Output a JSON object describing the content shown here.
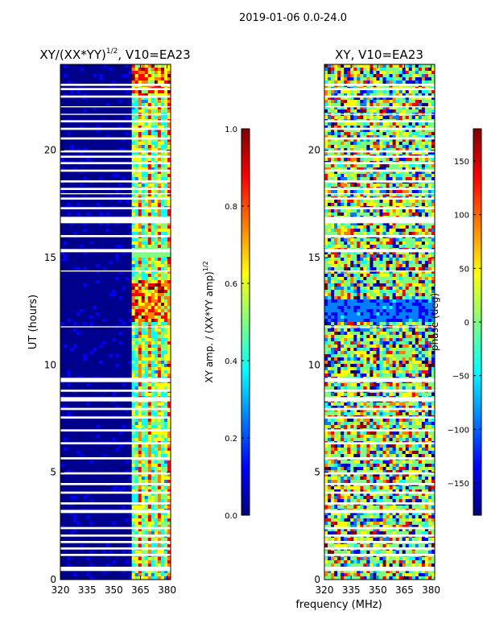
{
  "figure_title": "2019-01-06 0.0-24.0",
  "shared_xlabel": "frequency (MHz)",
  "colors": {
    "background": "#00008f",
    "gap": "#ffffff",
    "axis": "#000000",
    "jet": [
      "#00007f",
      "#0000ff",
      "#007fff",
      "#00ffff",
      "#7fff7f",
      "#ffff00",
      "#ff7f00",
      "#ff0000",
      "#7f0000"
    ]
  },
  "chart_data": [
    {
      "type": "heatmap",
      "title_main": "XY/(XX*YY)",
      "title_sup": "1/2",
      "title_suffix": ", V10=EA23",
      "xlabel": "",
      "ylabel": "UT (hours)",
      "xlim": [
        320,
        382
      ],
      "ylim": [
        0,
        24
      ],
      "xticks": [
        320,
        335,
        350,
        365,
        380
      ],
      "yticks": [
        0,
        5,
        10,
        15,
        20
      ],
      "colorbar": {
        "label_main": "XY amp. / (XX*YY amp)",
        "label_sup": "1/2",
        "range": [
          0.0,
          1.0
        ],
        "ticks": [
          "0.0",
          "0.2",
          "0.4",
          "0.6",
          "0.8",
          "1.0"
        ],
        "tick_values": [
          0.0,
          0.2,
          0.4,
          0.6,
          0.8,
          1.0
        ]
      },
      "active_band_mhz": [
        361,
        382
      ]
    },
    {
      "type": "heatmap",
      "title_main": "XY, V10=EA23",
      "xlabel": "frequency (MHz)",
      "ylabel": "",
      "xlim": [
        320,
        382
      ],
      "ylim": [
        0,
        24
      ],
      "xticks": [
        320,
        335,
        350,
        365,
        380
      ],
      "yticks": [
        0,
        5,
        10,
        15,
        20
      ],
      "colorbar": {
        "label_main": "phase (deg)",
        "range": [
          -180,
          180
        ],
        "ticks": [
          "−150",
          "−100",
          "−50",
          "0",
          "50",
          "100",
          "150"
        ],
        "tick_values": [
          -150,
          -100,
          -50,
          0,
          50,
          100,
          150
        ]
      }
    }
  ],
  "flagged_gaps_hours": [
    [
      0.4,
      0.6
    ],
    [
      1.1,
      1.2
    ],
    [
      1.4,
      1.5
    ],
    [
      1.7,
      1.8
    ],
    [
      2.0,
      2.1
    ],
    [
      2.35,
      2.45
    ],
    [
      3.1,
      3.25
    ],
    [
      3.5,
      3.6
    ],
    [
      4.0,
      4.1
    ],
    [
      4.4,
      4.5
    ],
    [
      4.9,
      5.0
    ],
    [
      5.6,
      5.7
    ],
    [
      6.3,
      6.4
    ],
    [
      6.9,
      7.0
    ],
    [
      7.5,
      7.6
    ],
    [
      7.9,
      8.0
    ],
    [
      8.3,
      8.5
    ],
    [
      8.75,
      8.85
    ],
    [
      9.2,
      9.4
    ],
    [
      11.75,
      11.8
    ],
    [
      14.35,
      14.4
    ],
    [
      15.25,
      15.4
    ],
    [
      15.95,
      16.05
    ],
    [
      16.6,
      16.9
    ],
    [
      17.25,
      17.35
    ],
    [
      17.7,
      17.8
    ],
    [
      17.95,
      18.0
    ],
    [
      18.15,
      18.25
    ],
    [
      18.5,
      18.6
    ],
    [
      19.0,
      19.1
    ],
    [
      19.35,
      19.45
    ],
    [
      19.65,
      19.75
    ],
    [
      19.9,
      20.0
    ],
    [
      20.5,
      20.6
    ],
    [
      20.95,
      21.05
    ],
    [
      21.3,
      21.4
    ],
    [
      21.65,
      21.7
    ],
    [
      22.0,
      22.05
    ],
    [
      22.45,
      22.55
    ],
    [
      22.8,
      22.9
    ],
    [
      23.0,
      23.1
    ]
  ]
}
